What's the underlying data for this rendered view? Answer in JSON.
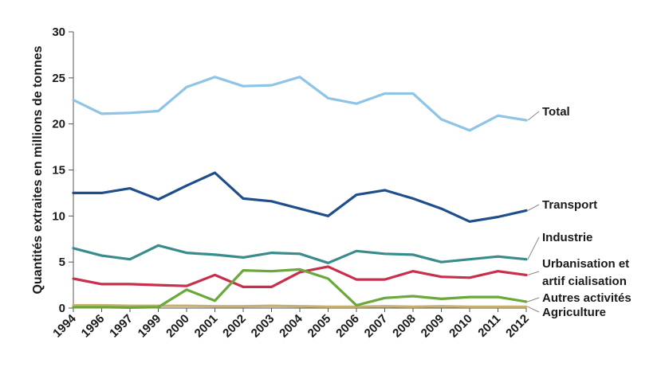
{
  "chart_data": {
    "type": "line",
    "title": "",
    "ylabel": "Quantités extraites en millions de tonnes",
    "xlabel": "",
    "ylim": [
      0,
      30
    ],
    "yticks": [
      "0",
      "5",
      "10",
      "15",
      "20",
      "25",
      "30"
    ],
    "x": [
      "1994",
      "1996",
      "1997",
      "1999",
      "2000",
      "2001",
      "2002",
      "2003",
      "2004",
      "2005",
      "2006",
      "2007",
      "2008",
      "2009",
      "2010",
      "2011",
      "2012"
    ],
    "grid": false,
    "legend": "end-of-line labels",
    "series": [
      {
        "name": "Total",
        "color": "#8ec4e6",
        "values": [
          22.6,
          21.1,
          21.2,
          21.4,
          24.0,
          25.1,
          24.1,
          24.2,
          25.1,
          22.8,
          22.2,
          23.3,
          23.3,
          20.5,
          19.3,
          20.9,
          20.4
        ]
      },
      {
        "name": "Transport",
        "color": "#1f4e8c",
        "values": [
          12.5,
          12.5,
          13.0,
          11.8,
          13.3,
          14.7,
          11.9,
          11.6,
          10.8,
          10.0,
          12.3,
          12.8,
          11.9,
          10.8,
          9.4,
          9.9,
          10.6
        ]
      },
      {
        "name": "Industrie",
        "color": "#3a8c8c",
        "values": [
          6.5,
          5.7,
          5.3,
          6.8,
          6.0,
          5.8,
          5.5,
          6.0,
          5.9,
          4.9,
          6.2,
          5.9,
          5.8,
          5.0,
          5.3,
          5.6,
          5.3
        ]
      },
      {
        "name": "Urbanisation et artif cialisation",
        "label_lines": [
          "Urbanisation et",
          "artif cialisation"
        ],
        "color": "#c82f4c",
        "values": [
          3.2,
          2.6,
          2.6,
          2.5,
          2.4,
          3.6,
          2.3,
          2.3,
          3.9,
          4.5,
          3.1,
          3.1,
          4.0,
          3.4,
          3.3,
          4.0,
          3.6
        ]
      },
      {
        "name": "Autres activités",
        "color": "#6aa83a",
        "values": [
          0.1,
          0.1,
          0.05,
          0.1,
          2.0,
          0.8,
          4.1,
          4.0,
          4.2,
          3.2,
          0.3,
          1.1,
          1.3,
          1.0,
          1.2,
          1.2,
          0.7
        ]
      },
      {
        "name": "Agriculture",
        "color": "#c8b070",
        "values": [
          0.3,
          0.3,
          0.25,
          0.25,
          0.25,
          0.2,
          0.2,
          0.25,
          0.2,
          0.15,
          0.15,
          0.2,
          0.15,
          0.2,
          0.15,
          0.15,
          0.15
        ]
      }
    ]
  }
}
